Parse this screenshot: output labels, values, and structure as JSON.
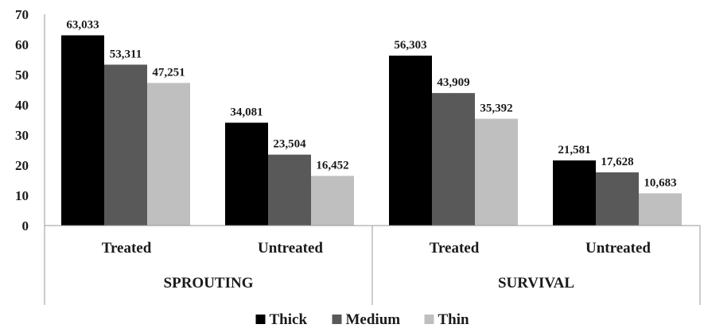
{
  "chart_data": {
    "type": "bar",
    "groups": [
      {
        "label": "SPROUTING",
        "categories": [
          "Treated",
          "Untreated"
        ]
      },
      {
        "label": "SURVIVAL",
        "categories": [
          "Treated",
          "Untreated"
        ]
      }
    ],
    "categories": [
      "Treated",
      "Untreated",
      "Treated",
      "Untreated"
    ],
    "series": [
      {
        "name": "Thick",
        "color": "#000000",
        "values": [
          63.033,
          34.081,
          56.303,
          21.581
        ],
        "labels": [
          "63,033",
          "34,081",
          "56,303",
          "21,581"
        ]
      },
      {
        "name": "Medium",
        "color": "#595959",
        "values": [
          53.311,
          23.504,
          43.909,
          17.628
        ],
        "labels": [
          "53,311",
          "23,504",
          "43,909",
          "17,628"
        ]
      },
      {
        "name": "Thin",
        "color": "#bfbfbf",
        "values": [
          47.251,
          16.452,
          35.392,
          10.683
        ],
        "labels": [
          "47,251",
          "16,452",
          "35,392",
          "10,683"
        ]
      }
    ],
    "yticks": [
      "0",
      "10",
      "20",
      "30",
      "40",
      "50",
      "60",
      "70"
    ],
    "ylim": [
      0,
      70
    ],
    "grid": false,
    "legend_position": "bottom"
  }
}
